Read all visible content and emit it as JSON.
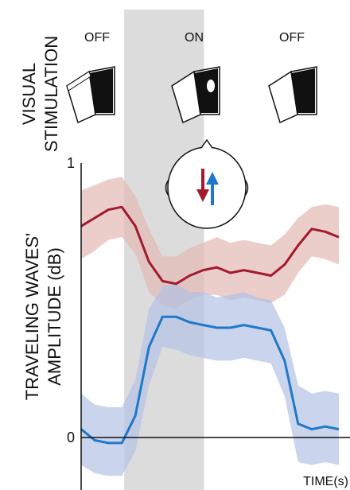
{
  "chart_data": {
    "type": "line",
    "xlabel": "TIME(s)",
    "ylabel_line1": "TRAVELING WAVES'",
    "ylabel_line2": "AMPLITUDE (dB)",
    "y_ticks": [
      "1",
      "0"
    ],
    "ylim": [
      -0.12,
      1.0
    ],
    "stimulation": {
      "label_line1": "VISUAL",
      "label_line2": "STIMULATION",
      "phases": [
        "OFF",
        "ON",
        "OFF"
      ],
      "on_period_index": [
        3,
        9
      ]
    },
    "x": [
      0,
      1,
      2,
      3,
      4,
      5,
      6,
      7,
      8,
      9,
      10,
      11,
      12,
      13,
      14,
      15,
      16,
      17,
      18,
      19
    ],
    "series": [
      {
        "color": "#a31a2c",
        "band_color": "#e2b9b3",
        "values": [
          0.77,
          0.8,
          0.83,
          0.84,
          0.77,
          0.64,
          0.57,
          0.56,
          0.59,
          0.61,
          0.62,
          0.6,
          0.61,
          0.6,
          0.59,
          0.63,
          0.7,
          0.76,
          0.75,
          0.73
        ],
        "upper": [
          0.9,
          0.92,
          0.94,
          0.95,
          0.88,
          0.76,
          0.66,
          0.66,
          0.69,
          0.71,
          0.73,
          0.71,
          0.72,
          0.71,
          0.7,
          0.74,
          0.8,
          0.84,
          0.85,
          0.84
        ],
        "lower": [
          0.65,
          0.68,
          0.72,
          0.73,
          0.67,
          0.53,
          0.48,
          0.47,
          0.5,
          0.52,
          0.52,
          0.5,
          0.51,
          0.5,
          0.49,
          0.52,
          0.6,
          0.66,
          0.65,
          0.63
        ]
      },
      {
        "color": "#1f78c8",
        "band_color": "#b3c2e6",
        "values": [
          0.03,
          -0.01,
          -0.02,
          -0.02,
          0.08,
          0.33,
          0.44,
          0.44,
          0.42,
          0.41,
          0.4,
          0.4,
          0.41,
          0.4,
          0.39,
          0.28,
          0.05,
          0.03,
          0.04,
          0.03
        ],
        "upper": [
          0.16,
          0.12,
          0.11,
          0.11,
          0.21,
          0.47,
          0.55,
          0.56,
          0.53,
          0.53,
          0.51,
          0.52,
          0.53,
          0.51,
          0.5,
          0.4,
          0.19,
          0.16,
          0.17,
          0.16
        ],
        "lower": [
          -0.1,
          -0.13,
          -0.14,
          -0.14,
          -0.05,
          0.19,
          0.33,
          0.32,
          0.3,
          0.29,
          0.28,
          0.28,
          0.29,
          0.28,
          0.27,
          0.15,
          -0.09,
          -0.1,
          -0.09,
          -0.1
        ]
      }
    ]
  }
}
